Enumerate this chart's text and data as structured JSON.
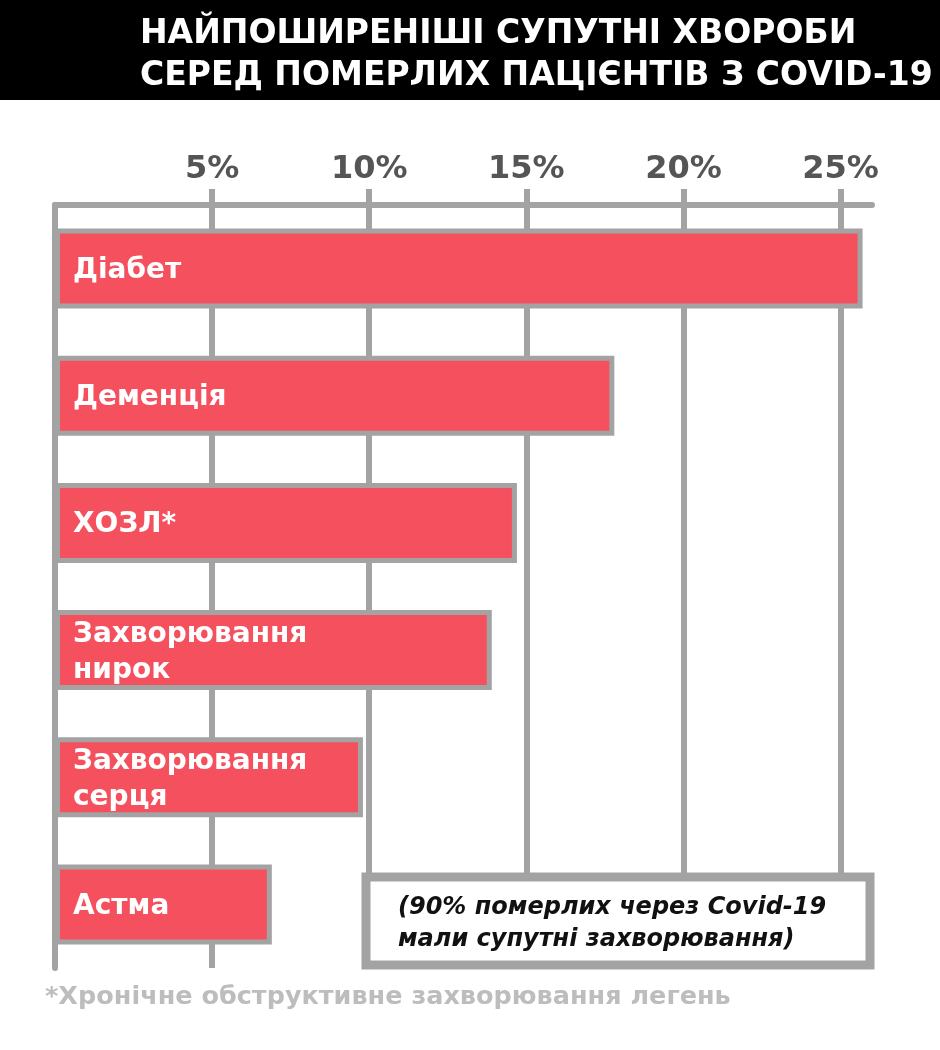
{
  "chart_data": {
    "type": "bar",
    "orientation": "horizontal",
    "title": "НАЙПОШИРЕНІШІ СУПУТНІ ХВОРОБИ\nСЕРЕД ПОМЕРЛИХ ПАЦІЄНТІВ З COVID-19",
    "categories": [
      "Діабет",
      "Деменція",
      "ХОЗЛ*",
      "Захворювання нирок",
      "Захворювання серця",
      "Астма"
    ],
    "values": [
      25.7,
      17.8,
      14.7,
      13.9,
      9.8,
      6.9
    ],
    "color": "#f5505e",
    "xlim": [
      0,
      26
    ],
    "xticks": [
      {
        "value": 5,
        "label": "5%"
      },
      {
        "value": 10,
        "label": "10%"
      },
      {
        "value": 15,
        "label": "15%"
      },
      {
        "value": 20,
        "label": "20%"
      },
      {
        "value": 25,
        "label": "25%"
      }
    ],
    "grid": "x",
    "annotations": [
      "(90% померлих через Covid-19\nмали супутні захворювання)",
      "*Хронічне обструктивне захворювання легень"
    ]
  }
}
